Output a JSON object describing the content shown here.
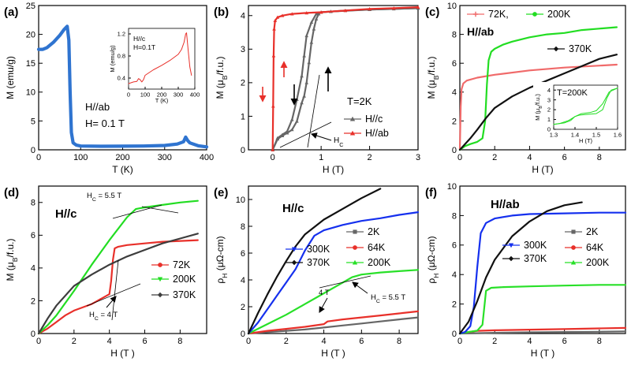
{
  "colors": {
    "blue": "#2f74d0",
    "red": "#e8302a",
    "green": "#22dd22",
    "black": "#111111",
    "dark": "#3d3d3d",
    "gray": "#666666",
    "pink": "#f06a6a",
    "pureblue": "#1530ee",
    "lime": "#28e028"
  },
  "chart_data": [
    {
      "id": "a",
      "type": "line",
      "panel_label": "(a)",
      "xlabel": "T (K)",
      "ylabel": "M (emu/g)",
      "xlim": [
        0,
        400
      ],
      "ylim": [
        0,
        25
      ],
      "xticks": [
        0,
        100,
        200,
        300,
        400
      ],
      "yticks": [
        0,
        5,
        10,
        15,
        20,
        25
      ],
      "annotations": [
        "H//ab",
        "H= 0.1 T"
      ],
      "series": [
        {
          "name": "H//ab, H = 0.1 T",
          "color": "blue",
          "style": "thick",
          "x": [
            0,
            10,
            20,
            35,
            50,
            60,
            68,
            72,
            75,
            78,
            82,
            90,
            100,
            150,
            200,
            250,
            300,
            330,
            345,
            350,
            355,
            360,
            380,
            400
          ],
          "y": [
            17.4,
            17.4,
            17.7,
            18.6,
            19.8,
            20.8,
            21.4,
            19,
            10,
            3,
            1.2,
            0.8,
            0.65,
            0.62,
            0.63,
            0.66,
            0.75,
            1.0,
            1.4,
            2.2,
            1.6,
            1.2,
            0.7,
            0.5
          ]
        }
      ],
      "inset": {
        "xlabel": "T (K)",
        "ylabel": "M (emu/g)",
        "xlim": [
          0,
          400
        ],
        "ylim": [
          0.2,
          1.3
        ],
        "xticks": [
          0,
          100,
          200,
          300,
          400
        ],
        "yticks": [
          0.4,
          0.8,
          1.2
        ],
        "annotations": [
          "H//c",
          "H=0.1T"
        ],
        "series": [
          {
            "name": "H//c, H = 0.1 T",
            "color": "red",
            "style": "thin",
            "x": [
              0,
              30,
              50,
              60,
              70,
              80,
              90,
              100,
              150,
              200,
              250,
              300,
              320,
              335,
              345,
              350,
              360,
              370,
              380
            ],
            "y": [
              0.3,
              0.33,
              0.34,
              0.39,
              0.37,
              0.33,
              0.37,
              0.45,
              0.55,
              0.63,
              0.72,
              0.83,
              0.92,
              1.05,
              1.2,
              1.22,
              0.9,
              0.6,
              0.45
            ]
          }
        ]
      }
    },
    {
      "id": "b",
      "type": "line",
      "panel_label": "(b)",
      "xlabel": "H (T)",
      "ylabel": "M (μB/f.u.)",
      "xlim": [
        -0.5,
        3
      ],
      "ylim": [
        0,
        4.3
      ],
      "xticks": [
        0,
        1,
        2,
        3
      ],
      "yticks": [
        0,
        1,
        2,
        3,
        4
      ],
      "annotations": [
        "T=2K",
        "HC"
      ],
      "legend": [
        {
          "label": "H//c",
          "color": "gray",
          "marker": "triangle"
        },
        {
          "label": "H//ab",
          "color": "red",
          "marker": "triangle"
        }
      ],
      "series": [
        {
          "name": "H//c up",
          "color": "gray",
          "marker": "triangle",
          "x": [
            0,
            0.1,
            0.2,
            0.3,
            0.4,
            0.5,
            0.6,
            0.65,
            0.7,
            0.75,
            0.8,
            0.85,
            0.9,
            0.95,
            1.0,
            1.2,
            1.5,
            2.0,
            2.5,
            3.0
          ],
          "y": [
            0,
            0.32,
            0.42,
            0.5,
            0.6,
            0.85,
            1.4,
            1.6,
            2.0,
            2.6,
            3.2,
            3.6,
            3.9,
            4.05,
            4.1,
            4.12,
            4.15,
            4.18,
            4.2,
            4.22
          ]
        },
        {
          "name": "H//c down",
          "color": "gray",
          "marker": "triangle",
          "x": [
            3.0,
            2.0,
            1.2,
            1.0,
            0.9,
            0.8,
            0.7,
            0.65,
            0.6,
            0.5,
            0.4,
            0.3,
            0.2,
            0.1,
            0
          ],
          "y": [
            4.22,
            4.18,
            4.12,
            4.1,
            4.05,
            3.8,
            3.4,
            2.8,
            2.2,
            1.5,
            0.9,
            0.55,
            0.45,
            0.35,
            0
          ]
        },
        {
          "name": "H//ab",
          "color": "red",
          "marker": "triangle",
          "x": [
            0,
            0.01,
            0.02,
            0.03,
            0.05,
            0.1,
            0.2,
            0.4,
            0.7,
            1.0,
            1.5,
            2.0,
            2.5,
            3.0
          ],
          "y": [
            0,
            1.3,
            2.8,
            3.6,
            3.85,
            3.95,
            4.0,
            4.05,
            4.08,
            4.1,
            4.15,
            4.2,
            4.22,
            4.25
          ]
        }
      ]
    },
    {
      "id": "c",
      "type": "line",
      "panel_label": "(c)",
      "xlabel": "H (T)",
      "ylabel": "M (μB/f.u.)",
      "xlim": [
        0,
        9.5
      ],
      "ylim": [
        0,
        10
      ],
      "xticks": [
        0,
        2,
        4,
        6,
        8
      ],
      "yticks": [
        0,
        2,
        4,
        6,
        8,
        10
      ],
      "annotations": [
        "H//ab"
      ],
      "legend": [
        {
          "label": "72K,",
          "color": "pink",
          "marker": "plus"
        },
        {
          "label": "200K",
          "color": "green",
          "marker": "dot"
        },
        {
          "label": "370K",
          "color": "black",
          "marker": "diamond"
        }
      ],
      "series": [
        {
          "name": "72K",
          "color": "pink",
          "x": [
            0,
            0.05,
            0.1,
            0.2,
            0.4,
            1,
            2,
            4,
            6,
            9
          ],
          "y": [
            0,
            3.0,
            4.2,
            4.6,
            4.8,
            5.0,
            5.2,
            5.5,
            5.7,
            5.9
          ]
        },
        {
          "name": "200K",
          "color": "green",
          "x": [
            0,
            0.3,
            0.6,
            1.0,
            1.3,
            1.45,
            1.55,
            1.65,
            1.8,
            2.0,
            2.5,
            3,
            4,
            5,
            6,
            7,
            8,
            9
          ],
          "y": [
            0,
            0.25,
            0.4,
            0.55,
            0.8,
            2.0,
            4.5,
            6.2,
            6.8,
            7.0,
            7.3,
            7.5,
            7.8,
            8.0,
            8.1,
            8.3,
            8.4,
            8.5
          ]
        },
        {
          "name": "370K",
          "color": "black",
          "x": [
            0,
            0.3,
            0.6,
            1,
            1.5,
            2,
            2.5,
            3,
            4,
            5,
            6,
            7,
            8,
            9
          ],
          "y": [
            0,
            0.4,
            0.8,
            1.4,
            2.2,
            2.9,
            3.3,
            3.7,
            4.3,
            4.8,
            5.3,
            5.8,
            6.3,
            6.6
          ]
        }
      ],
      "inset": {
        "xlabel": "H (T)",
        "ylabel": "M (μB/f.u.)",
        "xlim": [
          1.3,
          1.6
        ],
        "ylim": [
          0,
          4.5
        ],
        "xticks": [
          1.3,
          1.4,
          1.5,
          1.6
        ],
        "yticks": [
          0,
          1,
          2,
          3,
          4
        ],
        "annotations": [
          "T=200K"
        ],
        "series": [
          {
            "name": "200K loop up",
            "color": "green",
            "x": [
              1.3,
              1.35,
              1.38,
              1.4,
              1.42,
              1.45,
              1.5,
              1.53,
              1.55,
              1.57,
              1.6
            ],
            "y": [
              0.5,
              0.65,
              0.9,
              1.3,
              1.45,
              1.5,
              1.6,
              2.0,
              3.2,
              4.0,
              4.2
            ]
          },
          {
            "name": "200K loop down",
            "color": "green",
            "x": [
              1.6,
              1.56,
              1.53,
              1.5,
              1.47,
              1.43,
              1.4,
              1.37,
              1.33,
              1.3
            ],
            "y": [
              4.2,
              3.8,
              2.6,
              1.9,
              1.7,
              1.6,
              1.3,
              0.9,
              0.6,
              0.5
            ]
          }
        ]
      }
    },
    {
      "id": "d",
      "type": "line",
      "panel_label": "(d)",
      "xlabel": "H (T )",
      "ylabel": "M (μB/f.u.)",
      "xlim": [
        0,
        9.5
      ],
      "ylim": [
        0,
        9
      ],
      "xticks": [
        0,
        2,
        4,
        6,
        8
      ],
      "yticks": [
        0,
        2,
        4,
        6,
        8
      ],
      "annotations": [
        "H//c",
        "HC = 5.5 T",
        "HC = 4 T"
      ],
      "legend": [
        {
          "label": "72K",
          "color": "red",
          "marker": "dot"
        },
        {
          "label": "200K",
          "color": "green",
          "marker": "triangle-down"
        },
        {
          "label": "370K",
          "color": "dark",
          "marker": "diamond"
        }
      ],
      "series": [
        {
          "name": "72K",
          "color": "red",
          "x": [
            0,
            0.5,
            1,
            1.5,
            2,
            3,
            4,
            4.1,
            4.2,
            4.3,
            4.5,
            5,
            6,
            7,
            8,
            9
          ],
          "y": [
            0,
            0.3,
            0.7,
            1.1,
            1.4,
            1.8,
            2.4,
            3.2,
            4.5,
            5.2,
            5.3,
            5.4,
            5.5,
            5.6,
            5.65,
            5.7
          ]
        },
        {
          "name": "200K",
          "color": "green",
          "x": [
            0,
            0.5,
            1,
            2,
            3,
            4,
            5,
            5.5,
            6,
            7,
            8,
            9
          ],
          "y": [
            0,
            0.5,
            1.1,
            2.6,
            4.2,
            5.7,
            7.1,
            7.6,
            7.7,
            7.85,
            8.0,
            8.1
          ]
        },
        {
          "name": "370K",
          "color": "dark",
          "x": [
            0,
            0.5,
            1,
            2,
            3,
            4,
            5,
            6,
            7,
            8,
            9
          ],
          "y": [
            0,
            0.9,
            1.7,
            2.9,
            3.6,
            4.2,
            4.7,
            5.1,
            5.5,
            5.8,
            6.1
          ]
        }
      ]
    },
    {
      "id": "e",
      "type": "line",
      "panel_label": "(e)",
      "xlabel": "H (T )",
      "ylabel": "ρH (μΩ-cm)",
      "xlim": [
        0,
        9
      ],
      "ylim": [
        0,
        11
      ],
      "xticks": [
        0,
        2,
        4,
        6,
        8
      ],
      "yticks": [
        0,
        2,
        4,
        6,
        8,
        10
      ],
      "annotations": [
        "H//c",
        "4 T",
        "HC = 5.5 T"
      ],
      "legend": [
        {
          "label": "300K",
          "color": "pureblue",
          "marker": "triangle-down"
        },
        {
          "label": "370K",
          "color": "black",
          "marker": "diamond"
        },
        {
          "label": "2K",
          "color": "gray",
          "marker": "square"
        },
        {
          "label": "64K",
          "color": "red",
          "marker": "dot"
        },
        {
          "label": "200K",
          "color": "lime",
          "marker": "triangle"
        }
      ],
      "series": [
        {
          "name": "2K",
          "color": "gray",
          "x": [
            0,
            1,
            2,
            3,
            4,
            5,
            6,
            7,
            8,
            9
          ],
          "y": [
            0,
            0.1,
            0.2,
            0.3,
            0.45,
            0.6,
            0.75,
            0.9,
            1.05,
            1.2
          ]
        },
        {
          "name": "64K",
          "color": "red",
          "x": [
            0,
            1,
            2,
            3,
            4,
            4.2,
            5,
            6,
            7,
            8,
            9
          ],
          "y": [
            0,
            0.2,
            0.35,
            0.5,
            0.7,
            0.9,
            1.05,
            1.2,
            1.35,
            1.5,
            1.65
          ]
        },
        {
          "name": "200K",
          "color": "lime",
          "x": [
            0,
            1,
            2,
            3,
            4,
            5,
            5.5,
            6,
            7,
            8,
            9
          ],
          "y": [
            0,
            0.7,
            1.4,
            2.2,
            3.0,
            3.8,
            4.2,
            4.4,
            4.55,
            4.65,
            4.75
          ]
        },
        {
          "name": "300K",
          "color": "pureblue",
          "x": [
            0,
            0.5,
            1,
            1.5,
            2,
            2.5,
            3,
            3.5,
            4,
            5,
            6,
            7,
            8,
            9
          ],
          "y": [
            0,
            0.8,
            1.8,
            2.8,
            3.8,
            4.8,
            6.2,
            7.3,
            7.7,
            8.1,
            8.4,
            8.6,
            8.85,
            9.05
          ]
        },
        {
          "name": "370K",
          "color": "black",
          "x": [
            0,
            0.5,
            1,
            1.5,
            2,
            2.5,
            3,
            4,
            5,
            6,
            7
          ],
          "y": [
            0,
            1.5,
            2.9,
            4.2,
            5.4,
            6.5,
            7.4,
            8.5,
            9.3,
            10.1,
            10.8
          ]
        }
      ]
    },
    {
      "id": "f",
      "type": "line",
      "panel_label": "(f)",
      "xlabel": "H (T )",
      "ylabel": "ρH (μΩ-cm)",
      "xlim": [
        0,
        9.5
      ],
      "ylim": [
        0,
        10
      ],
      "xticks": [
        0,
        2,
        4,
        6,
        8
      ],
      "yticks": [
        0,
        2,
        4,
        6,
        8,
        10
      ],
      "annotations": [
        "H//ab"
      ],
      "legend": [
        {
          "label": "300K",
          "color": "pureblue",
          "marker": "triangle-down"
        },
        {
          "label": "370K",
          "color": "black",
          "marker": "diamond"
        },
        {
          "label": "2K",
          "color": "gray",
          "marker": "square"
        },
        {
          "label": "64K",
          "color": "red",
          "marker": "dot"
        },
        {
          "label": "200K",
          "color": "lime",
          "marker": "triangle"
        }
      ],
      "series": [
        {
          "name": "2K",
          "color": "gray",
          "x": [
            0,
            2,
            4,
            6,
            8,
            9.5
          ],
          "y": [
            0,
            0.05,
            0.08,
            0.1,
            0.12,
            0.14
          ]
        },
        {
          "name": "64K",
          "color": "red",
          "x": [
            0,
            0.5,
            1,
            2,
            4,
            6,
            8,
            9.5
          ],
          "y": [
            0,
            0.1,
            0.18,
            0.22,
            0.26,
            0.3,
            0.35,
            0.38
          ]
        },
        {
          "name": "200K",
          "color": "lime",
          "x": [
            0,
            0.5,
            1,
            1.3,
            1.5,
            1.8,
            2.5,
            4,
            6,
            8,
            9.5
          ],
          "y": [
            0,
            0.1,
            0.2,
            0.6,
            2.9,
            3.1,
            3.15,
            3.2,
            3.25,
            3.3,
            3.3
          ]
        },
        {
          "name": "300K",
          "color": "pureblue",
          "x": [
            0,
            0.3,
            0.6,
            0.8,
            1.0,
            1.2,
            1.5,
            2,
            3,
            4,
            6,
            8,
            9.5
          ],
          "y": [
            0,
            0.1,
            0.5,
            1.8,
            4.5,
            6.8,
            7.5,
            7.8,
            8.0,
            8.1,
            8.15,
            8.2,
            8.2
          ]
        },
        {
          "name": "370K",
          "color": "black",
          "x": [
            0,
            0.5,
            1,
            1.5,
            2,
            3,
            4,
            5,
            6,
            7
          ],
          "y": [
            0,
            0.8,
            2.2,
            3.8,
            5.0,
            6.6,
            7.6,
            8.3,
            8.7,
            8.9
          ]
        }
      ]
    }
  ]
}
